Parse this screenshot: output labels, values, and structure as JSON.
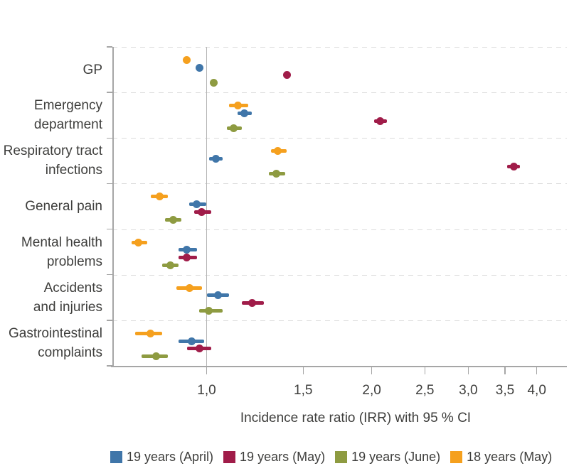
{
  "chart_data": {
    "type": "scatter",
    "subtype": "forest_plot_dots_with_95ci",
    "title": "",
    "xlabel": "Incidence rate ratio (IRR) with 95 % CI",
    "ylabel": "",
    "x_scale": "log",
    "xlim": [
      0.67,
      4.55
    ],
    "x_ticks": [
      {
        "label": "1,0",
        "value": 1.0
      },
      {
        "label": "1,5",
        "value": 1.5
      },
      {
        "label": "2,0",
        "value": 2.0
      },
      {
        "label": "2,5",
        "value": 2.5
      },
      {
        "label": "3,0",
        "value": 3.0
      },
      {
        "label": "3,5",
        "value": 3.5
      },
      {
        "label": "4,0",
        "value": 4.0
      }
    ],
    "reference_line_x": 1.0,
    "grid": "dashed horizontal category separators",
    "legend_position": "bottom",
    "categories": [
      {
        "label_lines": [
          "GP"
        ]
      },
      {
        "label_lines": [
          "Emergency",
          "department"
        ]
      },
      {
        "label_lines": [
          "Respiratory tract",
          "infections"
        ]
      },
      {
        "label_lines": [
          "General pain"
        ]
      },
      {
        "label_lines": [
          "Mental health",
          "problems"
        ]
      },
      {
        "label_lines": [
          "Accidents",
          "and injuries"
        ]
      },
      {
        "label_lines": [
          "Gastrointestinal",
          "complaints"
        ]
      }
    ],
    "row_order_top_to_bottom": [
      "18 years (May)",
      "19 years (April)",
      "19 years (May)",
      "19 years (June)"
    ],
    "series": [
      {
        "name": "19 years (April)",
        "color": "#4076A9",
        "points": [
          {
            "irr": 0.97,
            "ci": null
          },
          {
            "irr": 1.17,
            "ci": [
              1.14,
              1.21
            ]
          },
          {
            "irr": 1.04,
            "ci": [
              1.01,
              1.07
            ]
          },
          {
            "irr": 0.96,
            "ci": [
              0.93,
              1.0
            ]
          },
          {
            "irr": 0.92,
            "ci": [
              0.89,
              0.96
            ]
          },
          {
            "irr": 1.05,
            "ci": [
              1.0,
              1.1
            ]
          },
          {
            "irr": 0.94,
            "ci": [
              0.89,
              0.99
            ]
          }
        ]
      },
      {
        "name": "19 years (May)",
        "color": "#A01C49",
        "points": [
          {
            "irr": 1.4,
            "ci": null
          },
          {
            "irr": 2.07,
            "ci": [
              2.02,
              2.13
            ]
          },
          {
            "irr": 3.63,
            "ci": [
              3.53,
              3.73
            ]
          },
          {
            "irr": 0.98,
            "ci": [
              0.95,
              1.02
            ]
          },
          {
            "irr": 0.92,
            "ci": [
              0.89,
              0.96
            ]
          },
          {
            "irr": 1.21,
            "ci": [
              1.16,
              1.27
            ]
          },
          {
            "irr": 0.97,
            "ci": [
              0.92,
              1.02
            ]
          }
        ]
      },
      {
        "name": "19 years (June)",
        "color": "#8E9B41",
        "points": [
          {
            "irr": 1.03,
            "ci": null
          },
          {
            "irr": 1.12,
            "ci": [
              1.09,
              1.16
            ]
          },
          {
            "irr": 1.34,
            "ci": [
              1.3,
              1.39
            ]
          },
          {
            "irr": 0.87,
            "ci": [
              0.84,
              0.9
            ]
          },
          {
            "irr": 0.86,
            "ci": [
              0.83,
              0.89
            ]
          },
          {
            "irr": 1.01,
            "ci": [
              0.97,
              1.07
            ]
          },
          {
            "irr": 0.81,
            "ci": [
              0.76,
              0.85
            ]
          }
        ]
      },
      {
        "name": "18 years (May)",
        "color": "#F5A01E",
        "points": [
          {
            "irr": 0.92,
            "ci": null
          },
          {
            "irr": 1.14,
            "ci": [
              1.1,
              1.19
            ]
          },
          {
            "irr": 1.35,
            "ci": [
              1.31,
              1.4
            ]
          },
          {
            "irr": 0.82,
            "ci": [
              0.79,
              0.85
            ]
          },
          {
            "irr": 0.75,
            "ci": [
              0.73,
              0.78
            ]
          },
          {
            "irr": 0.93,
            "ci": [
              0.88,
              0.98
            ]
          },
          {
            "irr": 0.79,
            "ci": [
              0.74,
              0.83
            ]
          }
        ]
      }
    ],
    "colors": {
      "text": "#3E3E3C",
      "axis": "#A6A6A6",
      "gridline": "#DCDCDC",
      "reference_line": "#B5B5B5"
    }
  }
}
